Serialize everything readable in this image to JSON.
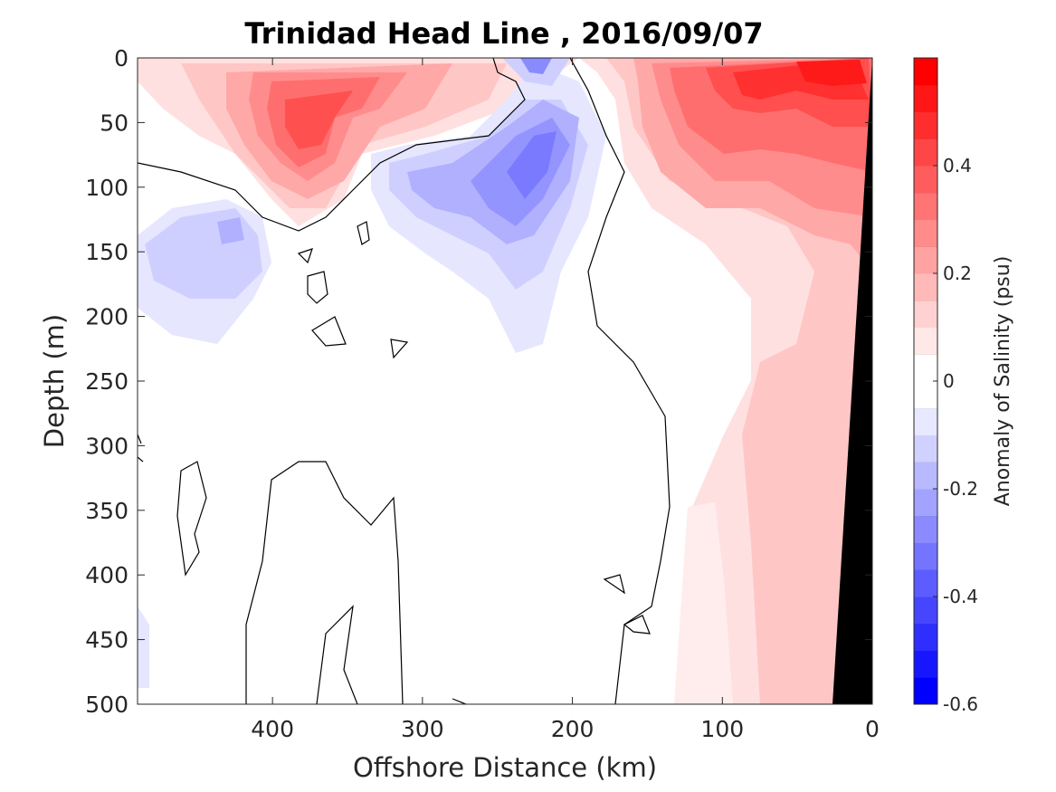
{
  "chart_data": {
    "type": "heatmap",
    "title": "Trinidad Head Line , 2016/09/07",
    "xlabel": "Offshore Distance (km)",
    "ylabel": "Depth (m)",
    "xlim": [
      490,
      0
    ],
    "ylim": [
      0,
      500
    ],
    "y_reversed": true,
    "x_reversed": true,
    "x_ticks": [
      400,
      300,
      200,
      100,
      0
    ],
    "y_ticks": [
      0,
      50,
      100,
      150,
      200,
      250,
      300,
      350,
      400,
      450,
      500
    ],
    "colorbar": {
      "label": "Anomaly of Salinity (psu)",
      "range": [
        -0.6,
        0.6
      ],
      "ticks": [
        -0.6,
        -0.4,
        -0.2,
        0,
        0.2,
        0.4
      ],
      "levels": 24,
      "colors": {
        "negative": "#0000ff",
        "zero": "#ffffff",
        "positive": "#ff0000"
      }
    },
    "zero_contour_color": "#000000",
    "bathymetry_color": "#000000",
    "regions": [
      {
        "name": "surface positive lobe",
        "x_range": [
          460,
          280
        ],
        "depth_range": [
          0,
          130
        ],
        "peak_value": 0.38
      },
      {
        "name": "negative tongue",
        "x_range": [
          330,
          190
        ],
        "depth_range": [
          0,
          240
        ],
        "peak_value": -0.3
      },
      {
        "name": "western negative patch",
        "x_range": [
          490,
          380
        ],
        "depth_range": [
          110,
          230
        ],
        "peak_value": -0.15
      },
      {
        "name": "nearshore positive",
        "x_range": [
          190,
          0
        ],
        "depth_range": [
          0,
          500
        ],
        "peak_value": 0.55
      }
    ]
  }
}
